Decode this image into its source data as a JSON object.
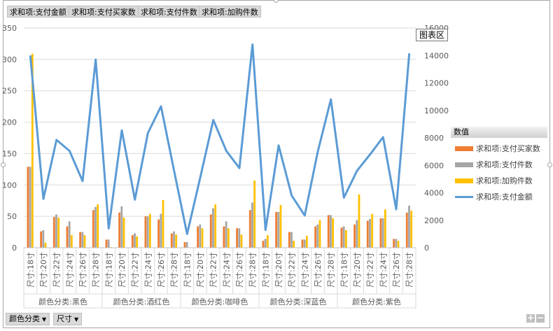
{
  "value_buttons": [
    "求和项:支付金额",
    "求和项:支付买家数",
    "求和项:支付件数",
    "求和项:加购件数"
  ],
  "chart_area_label": "图表区",
  "legend": {
    "title": "数值",
    "items": [
      {
        "label": "求和项:支付买家数",
        "color": "#ed7d31",
        "kind": "bar"
      },
      {
        "label": "求和项:支付件数",
        "color": "#a5a5a5",
        "kind": "bar"
      },
      {
        "label": "求和项:加购件数",
        "color": "#ffc000",
        "kind": "bar"
      },
      {
        "label": "求和项:支付金额",
        "color": "#5b9bd5",
        "kind": "line"
      }
    ]
  },
  "axis_buttons": [
    {
      "label": "颜色分类"
    },
    {
      "label": "尺寸"
    }
  ],
  "zoom": {
    "plus": "+",
    "minus": "−"
  },
  "chart_data": {
    "type": "bar",
    "combo": "clustered column with line on secondary axis",
    "groups": [
      {
        "label": "颜色分类:黑色",
        "sizes": [
          "尺寸:18寸",
          "尺寸:20寸",
          "尺寸:22寸",
          "尺寸:24寸",
          "尺寸:26寸",
          "尺寸:28寸"
        ]
      },
      {
        "label": "颜色分类:酒红色",
        "sizes": [
          "尺寸:18寸",
          "尺寸:20寸",
          "尺寸:22寸",
          "尺寸:24寸",
          "尺寸:26寸",
          "尺寸:28寸"
        ]
      },
      {
        "label": "颜色分类:咖啡色",
        "sizes": [
          "尺寸:18寸",
          "尺寸:20寸",
          "尺寸:22寸",
          "尺寸:24寸",
          "尺寸:26寸",
          "尺寸:28寸"
        ]
      },
      {
        "label": "颜色分类:深蓝色",
        "sizes": [
          "尺寸:18寸",
          "尺寸:20寸",
          "尺寸:22寸",
          "尺寸:24寸",
          "尺寸:26寸",
          "尺寸:28寸"
        ]
      },
      {
        "label": "颜色分类:紫色",
        "sizes": [
          "尺寸:18寸",
          "尺寸:20寸",
          "尺寸:22寸",
          "尺寸:24寸",
          "尺寸:26寸",
          "尺寸:28寸"
        ]
      }
    ],
    "series": [
      {
        "name": "求和项:支付买家数",
        "axis": "primary",
        "color": "#ed7d31",
        "values": [
          129,
          26,
          49,
          34,
          25,
          60,
          13,
          56,
          20,
          50,
          45,
          23,
          9,
          34,
          53,
          34,
          31,
          60,
          11,
          57,
          25,
          13,
          34,
          52,
          32,
          37,
          43,
          47,
          14,
          56
        ]
      },
      {
        "name": "求和项:支付件数",
        "axis": "primary",
        "color": "#a5a5a5",
        "values": [
          129,
          28,
          53,
          42,
          25,
          65,
          13,
          66,
          23,
          50,
          54,
          26,
          9,
          37,
          63,
          42,
          31,
          72,
          14,
          57,
          25,
          13,
          37,
          52,
          34,
          44,
          46,
          47,
          14,
          67
        ]
      },
      {
        "name": "求和项:加购件数",
        "axis": "primary",
        "color": "#ffc000",
        "values": [
          309,
          8,
          48,
          20,
          20,
          69,
          1,
          48,
          18,
          54,
          76,
          21,
          0,
          31,
          69,
          31,
          21,
          107,
          20,
          68,
          11,
          19,
          44,
          47,
          28,
          85,
          54,
          61,
          11,
          59
        ]
      },
      {
        "name": "求和项:支付金额",
        "axis": "secondary",
        "color": "#5b9bd5",
        "values": [
          14000,
          3550,
          7850,
          7050,
          4850,
          13700,
          1400,
          8550,
          3500,
          8350,
          10300,
          5600,
          1000,
          5100,
          9300,
          7050,
          5800,
          14800,
          1300,
          7450,
          3800,
          2350,
          7000,
          10800,
          3650,
          5600,
          6800,
          8050,
          2800,
          14150
        ]
      }
    ],
    "y_primary": {
      "min": 0,
      "max": 350,
      "ticks": [
        0,
        50,
        100,
        150,
        200,
        250,
        300,
        350
      ]
    },
    "y_secondary": {
      "min": 0,
      "max": 16000,
      "ticks": [
        0,
        2000,
        4000,
        6000,
        8000,
        10000,
        12000,
        14000,
        16000
      ]
    },
    "grid": true,
    "legend_position": "right"
  }
}
